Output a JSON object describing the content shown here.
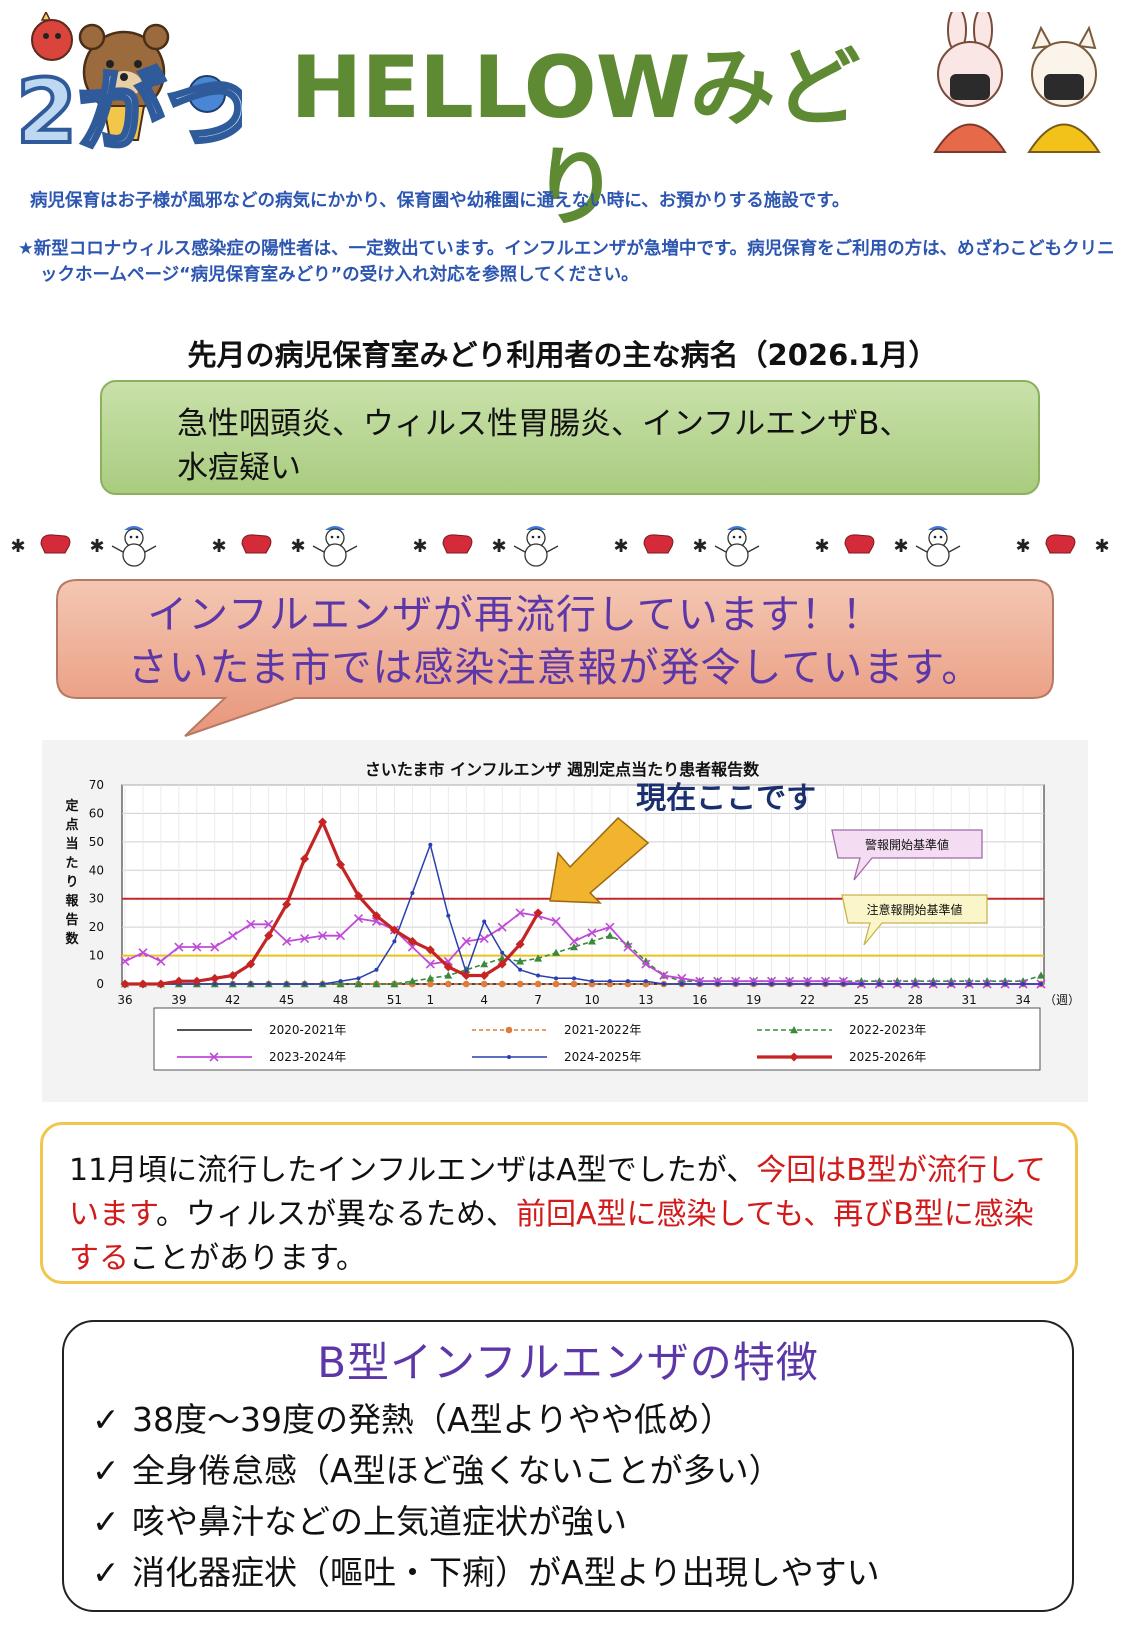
{
  "header": {
    "month": "2がつ",
    "title": "HELLOWみどり"
  },
  "intro": {
    "line": "病児保育はお子様が風邪などの病気にかかり、保育園や幼稚園に通えない時に、お預かりする施設です。",
    "notice": "★新型コロナウィルス感染症の陽性者は、一定数出ています。インフルエンザが急増中です。病児保育をご利用の方は、めざわこどもクリニックホームページ“病児保育室みどり”の受け入れ対応を参照してください。"
  },
  "illnesses": {
    "heading": "先月の病児保育室みどり利用者の主な病名（2026.1月）",
    "line1": "急性咽頭炎、ウィルス性胃腸炎、インフルエンザB、",
    "line2": "水痘疑い"
  },
  "alert": {
    "line1": "インフルエンザが再流行しています！！",
    "line2": "さいたま市では感染注意報が発令しています。"
  },
  "chart_data": {
    "type": "line",
    "title": "さいたま市 インフルエンザ 週別定点当たり患者報告数",
    "ylabel": "定点当たり報告数",
    "xlabel": "（週）",
    "ylim": [
      0,
      70
    ],
    "yticks": [
      0,
      10,
      20,
      30,
      40,
      50,
      60,
      70
    ],
    "xtick_labels": [
      "36",
      "39",
      "42",
      "45",
      "48",
      "51",
      "1",
      "4",
      "7",
      "10",
      "13",
      "16",
      "19",
      "22",
      "25",
      "28",
      "31",
      "34"
    ],
    "x_weeks": [
      36,
      37,
      38,
      39,
      40,
      41,
      42,
      43,
      44,
      45,
      46,
      47,
      48,
      49,
      50,
      51,
      52,
      1,
      2,
      3,
      4,
      5,
      6,
      7,
      8,
      9,
      10,
      11,
      12,
      13,
      14,
      15,
      16,
      17,
      18,
      19,
      20,
      21,
      22,
      23,
      24,
      25,
      26,
      27,
      28,
      29,
      30,
      31,
      32,
      33,
      34,
      35
    ],
    "grid": true,
    "legend_position": "bottom",
    "annotation": "現在ここです",
    "thresholds": [
      {
        "label": "警報開始基準値",
        "value": 30,
        "color": "#c0282d"
      },
      {
        "label": "注意報開始基準値",
        "value": 10,
        "color": "#e9c21a"
      }
    ],
    "series": [
      {
        "name": "2020-2021年",
        "color": "#1a1a1a",
        "values": [
          0,
          0,
          0,
          0,
          0,
          0,
          0,
          0,
          0,
          0,
          0,
          0,
          0,
          0,
          0,
          0,
          0,
          0,
          0,
          0,
          0,
          0,
          0,
          0,
          0,
          0,
          0,
          0,
          0,
          0,
          0,
          0,
          0,
          0,
          0,
          0,
          0,
          0,
          0,
          0,
          0,
          0,
          0,
          0,
          0,
          0,
          0,
          0,
          0,
          0,
          0,
          0
        ]
      },
      {
        "name": "2021-2022年",
        "color": "#e07b39",
        "values": [
          0,
          0,
          0,
          0,
          0,
          0,
          0,
          0,
          0,
          0,
          0,
          0,
          0,
          0,
          0,
          0,
          0,
          0,
          0,
          0,
          0,
          0,
          0,
          0,
          0,
          0,
          0,
          0,
          0,
          0,
          0,
          0,
          0,
          0,
          0,
          0,
          0,
          0,
          0,
          0,
          0,
          0,
          0,
          0,
          0,
          0,
          0,
          0,
          0,
          0,
          0,
          0
        ]
      },
      {
        "name": "2022-2023年",
        "color": "#3b8a3b",
        "values": [
          0,
          0,
          0,
          0,
          0,
          0,
          0,
          0,
          0,
          0,
          0,
          0,
          0,
          0,
          0,
          0,
          1,
          2,
          3,
          5,
          7,
          9,
          8,
          9,
          11,
          13,
          15,
          17,
          14,
          8,
          3,
          1,
          1,
          1,
          1,
          1,
          1,
          1,
          1,
          1,
          1,
          1,
          1,
          1,
          1,
          1,
          1,
          1,
          1,
          1,
          1,
          3
        ]
      },
      {
        "name": "2023-2024年",
        "color": "#c04ad8",
        "values": [
          8,
          11,
          8,
          13,
          13,
          13,
          17,
          21,
          21,
          15,
          16,
          17,
          17,
          23,
          22,
          19,
          13,
          7,
          8,
          15,
          16,
          20,
          25,
          24,
          22,
          15,
          18,
          20,
          13,
          7,
          3,
          2,
          1,
          1,
          1,
          1,
          1,
          1,
          1,
          1,
          1,
          0,
          0,
          0,
          0,
          0,
          0,
          0,
          0,
          0,
          0,
          0
        ]
      },
      {
        "name": "2024-2025年",
        "color": "#2a3fb0",
        "values": [
          0,
          0,
          0,
          0,
          0,
          0,
          0,
          0,
          0,
          0,
          0,
          0,
          1,
          2,
          5,
          15,
          32,
          49,
          24,
          4,
          22,
          11,
          5,
          3,
          2,
          2,
          1,
          1,
          1,
          1,
          0,
          0,
          0,
          0,
          0,
          0,
          0,
          0,
          0,
          0,
          0,
          0,
          0,
          0,
          0,
          0,
          0,
          0,
          0,
          0,
          0,
          0
        ]
      },
      {
        "name": "2025-2026年",
        "color": "#c42424",
        "values": [
          0,
          0,
          0,
          1,
          1,
          2,
          3,
          7,
          17,
          28,
          44,
          57,
          42,
          31,
          24,
          19,
          15,
          12,
          6,
          3,
          3,
          7,
          14,
          25
        ]
      }
    ]
  },
  "explanation": {
    "part1": "11月頃に流行したインフルエンザはA型でしたが、",
    "part2_red": "今回はB型が流行しています",
    "part3": "。ウィルスが異なるため、",
    "part4_red": "前回A型に感染しても、再びB型に感染する",
    "part5": "ことがあります。"
  },
  "features": {
    "title": "B型インフルエンザの特徴",
    "check_mark": "✓",
    "items": [
      "38度～39度の発熱（A型よりやや低め）",
      "全身倦怠感（A型ほど強くないことが多い）",
      "咳や鼻汁などの上気道症状が強い",
      "消化器症状（嘔吐・下痢）がA型より出現しやすい"
    ]
  }
}
